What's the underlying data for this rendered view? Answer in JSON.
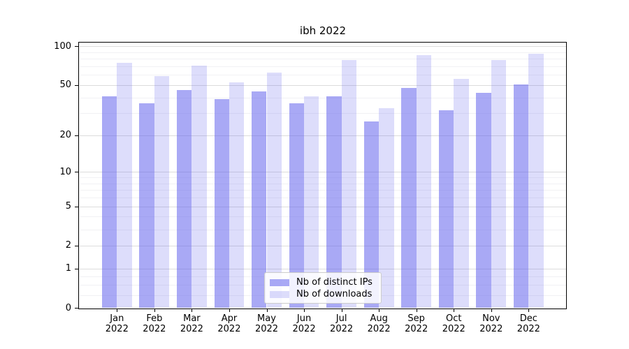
{
  "title": "ibh 2022",
  "chart_data": {
    "type": "bar",
    "title": "ibh 2022",
    "categories": [
      "Jan",
      "Feb",
      "Mar",
      "Apr",
      "May",
      "Jun",
      "Jul",
      "Aug",
      "Sep",
      "Oct",
      "Nov",
      "Dec"
    ],
    "year_label": "2022",
    "series": [
      {
        "name": "Nb of distinct IPs",
        "color": "rgba(99, 99, 237, 0.55)",
        "values": [
          41,
          36,
          46,
          39,
          45,
          36,
          41,
          26,
          48,
          32,
          44,
          51
        ]
      },
      {
        "name": "Nb of downloads",
        "color": "rgba(99, 99, 237, 0.22)",
        "values": [
          75,
          59,
          71,
          53,
          63,
          41,
          79,
          33,
          86,
          56,
          79,
          88
        ]
      }
    ],
    "yscale": "log1p",
    "yticks": [
      0,
      1,
      2,
      5,
      10,
      20,
      50,
      100
    ],
    "yticks_minor": [
      0.25,
      0.5,
      0.75,
      3,
      4,
      6,
      7,
      8,
      9,
      30,
      40,
      60,
      70,
      80,
      90
    ],
    "ylim": [
      0,
      110
    ],
    "grid": true,
    "legend_position": "lower center",
    "axis_color": "#000000",
    "grid_major_color": "#dcdcdc",
    "grid_minor_color": "#f1f1f4"
  }
}
